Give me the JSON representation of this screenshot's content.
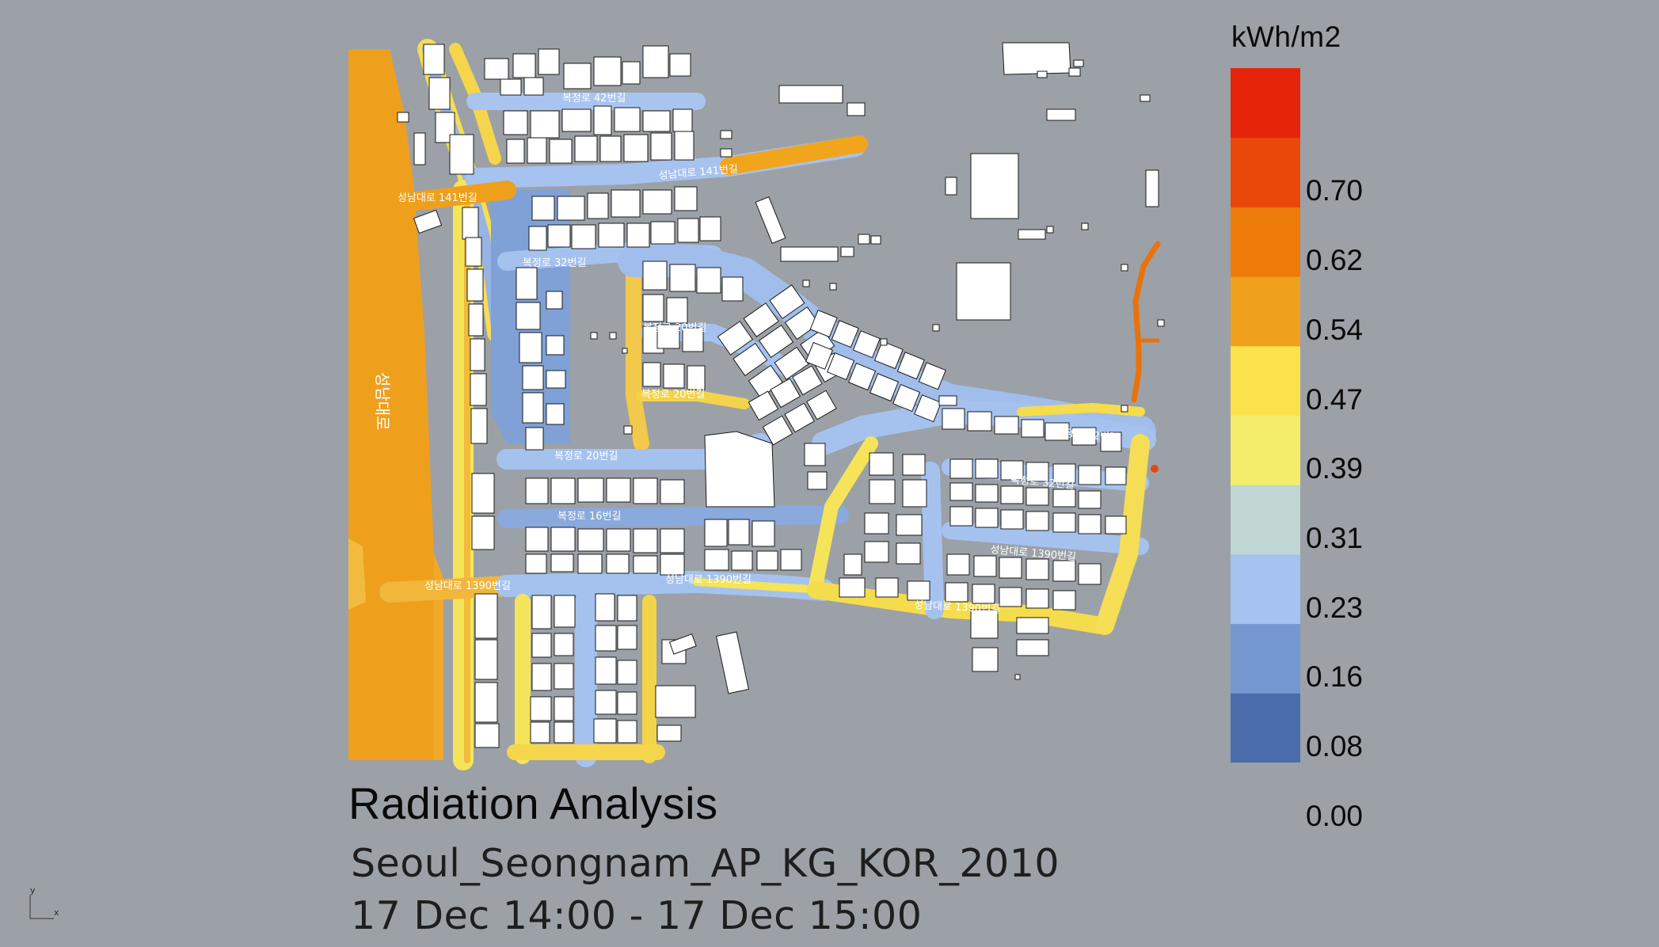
{
  "legend": {
    "unit": "kWh/m2",
    "ticks": [
      "0.70",
      "0.62",
      "0.54",
      "0.47",
      "0.39",
      "0.31",
      "0.23",
      "0.16",
      "0.08",
      "0.00"
    ],
    "colors": [
      "#4a6cab",
      "#7597cf",
      "#a5c2f0",
      "#c0d6d3",
      "#f3ed6b",
      "#fbe24c",
      "#efa11e",
      "#ee7a0a",
      "#e8490a",
      "#e52409"
    ]
  },
  "title": "Radiation Analysis",
  "subtitle_location": "Seoul_Seongnam_AP_KG_KOR_2010",
  "subtitle_period": "17 Dec 14:00 - 17 Dec 15:00",
  "axis_indicator": {
    "y": "y",
    "x": "x"
  },
  "street_labels": {
    "l42": "복정로 42번길",
    "l141a": "성남대로 141번길",
    "l141b": "성남대로 141번길",
    "l32a": "복정로 32번길",
    "l20a": "복정로 20번길",
    "l20b": "복정로 20번길",
    "l20c": "복정로 20번길",
    "l16": "복정로 16번길",
    "l1390a": "성남대로 1390번길",
    "l1390b": "성남대로 1390번길",
    "l1390c": "성남대로 1390번길",
    "l1390d": "성남대로 1390번길",
    "l32b": "복정로 32번길",
    "l32c": "복정로 32번길",
    "avenue": "성남대로"
  },
  "colors": {
    "background": "#9ca1a7",
    "building_fill": "#ffffff",
    "building_stroke": "#1a1a1a"
  }
}
